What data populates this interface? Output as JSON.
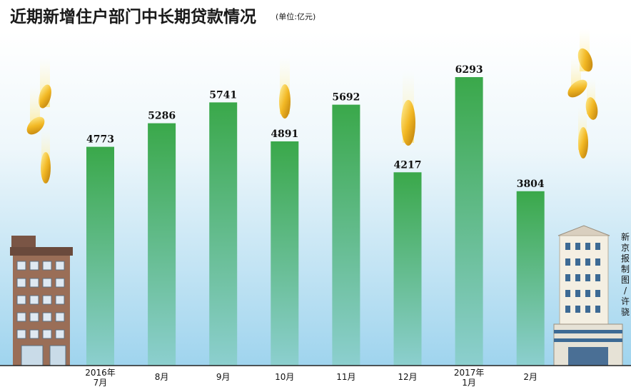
{
  "chart_data": {
    "type": "bar",
    "title": "近期新增住户部门中长期贷款情况",
    "unit": "(单位:亿元)",
    "categories": [
      [
        "2016年",
        "7月"
      ],
      [
        "8月"
      ],
      [
        "9月"
      ],
      [
        "10月"
      ],
      [
        "11月"
      ],
      [
        "12月"
      ],
      [
        "2017年",
        "1月"
      ],
      [
        "2月"
      ]
    ],
    "values": [
      4773,
      5286,
      5741,
      4891,
      5692,
      4217,
      6293,
      3804
    ],
    "ylim": [
      0,
      6293
    ],
    "grid": false,
    "bar_color_top": "#3aa84a",
    "bar_color_bottom": "#8ccfcf",
    "background_color_top": "#ffffff",
    "background_color_bottom": "#9fd4ee"
  },
  "credit": "新京报制图/许骁"
}
